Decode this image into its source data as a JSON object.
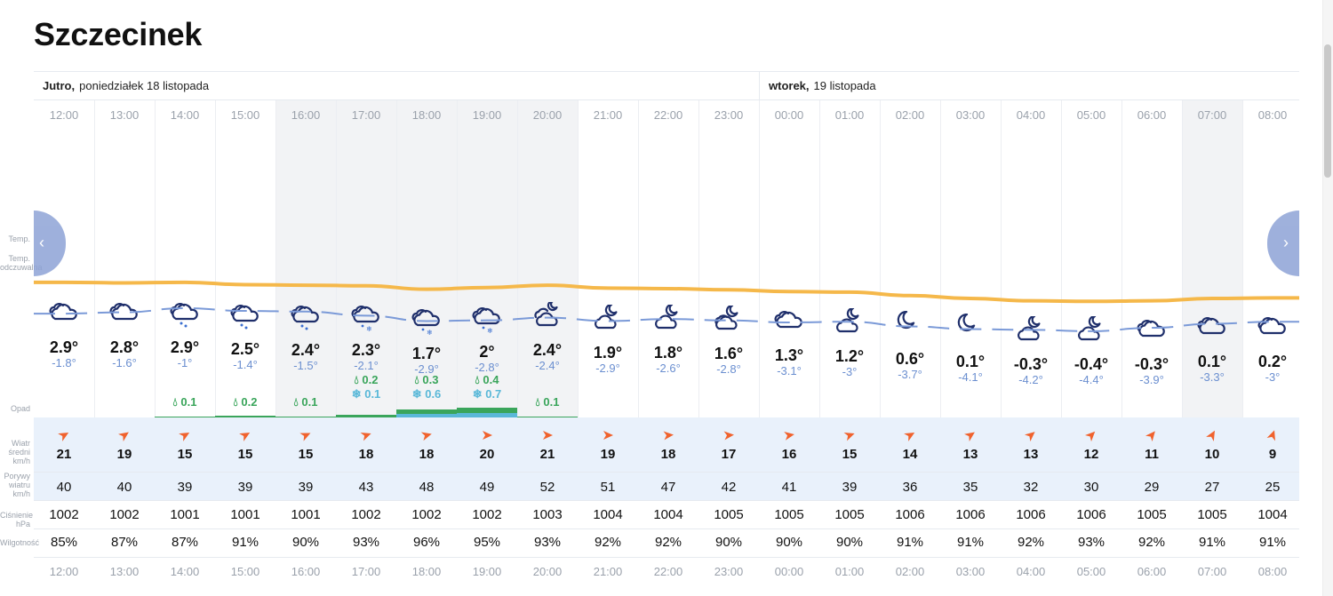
{
  "location": {
    "title": "Szczecinek"
  },
  "days": [
    {
      "name": "Jutro,",
      "date": "poniedziałek 18 listopada"
    },
    {
      "name": "wtorek,",
      "date": "19 listopada"
    }
  ],
  "labels": {
    "temp": "Temp.",
    "feels_line1": "Temp.",
    "feels_line2": "odczuwalna",
    "precip": "Opad",
    "wind_line1": "Wiatr średni",
    "wind_line2": "km/h",
    "gust_line1": "Porywy",
    "gust_line2": "wiatru",
    "gust_line3": "km/h",
    "pressure_line1": "Ciśnienie",
    "pressure_line2": "hPa",
    "humidity": "Wilgotność"
  },
  "navigation": {
    "prev_icon": "‹",
    "next_icon": "›"
  },
  "colors": {
    "temp_line": "#f5b84a",
    "feels_line": "#7b9ad8",
    "rain": "#3aa55b",
    "snow": "#5ab8d8",
    "wind_arrow": "#f0622d"
  },
  "hours": [
    {
      "time": "12:00",
      "temp": "2.9°",
      "feels": "-1.8°",
      "temp_val": 2.9,
      "feels_val": -1.8,
      "icon": "cloudy-icon",
      "rain": "",
      "snow": "",
      "wind": "21",
      "gust": "40",
      "pressure": "1002",
      "humidity": "85%",
      "wind_dir": 60
    },
    {
      "time": "13:00",
      "temp": "2.8°",
      "feels": "-1.6°",
      "temp_val": 2.8,
      "feels_val": -1.6,
      "icon": "cloudy-icon",
      "rain": "",
      "snow": "",
      "wind": "19",
      "gust": "40",
      "pressure": "1002",
      "humidity": "87%",
      "wind_dir": 55
    },
    {
      "time": "14:00",
      "temp": "2.9°",
      "feels": "-1°",
      "temp_val": 2.9,
      "feels_val": -1.0,
      "icon": "rain-icon",
      "rain": "0.1",
      "snow": "",
      "wind": "15",
      "gust": "39",
      "pressure": "1001",
      "humidity": "87%",
      "wind_dir": 60
    },
    {
      "time": "15:00",
      "temp": "2.5°",
      "feels": "-1.4°",
      "temp_val": 2.5,
      "feels_val": -1.4,
      "icon": "rain-icon",
      "rain": "0.2",
      "snow": "",
      "wind": "15",
      "gust": "39",
      "pressure": "1001",
      "humidity": "91%",
      "wind_dir": 60
    },
    {
      "time": "16:00",
      "temp": "2.4°",
      "feels": "-1.5°",
      "temp_val": 2.4,
      "feels_val": -1.5,
      "icon": "rain-icon",
      "rain": "0.1",
      "snow": "",
      "wind": "15",
      "gust": "39",
      "pressure": "1001",
      "humidity": "90%",
      "wind_dir": 65
    },
    {
      "time": "17:00",
      "temp": "2.3°",
      "feels": "-2.1°",
      "temp_val": 2.3,
      "feels_val": -2.1,
      "icon": "sleet-icon",
      "rain": "0.2",
      "snow": "0.1",
      "wind": "18",
      "gust": "43",
      "pressure": "1002",
      "humidity": "93%",
      "wind_dir": 70
    },
    {
      "time": "18:00",
      "temp": "1.7°",
      "feels": "-2.9°",
      "temp_val": 1.7,
      "feels_val": -2.9,
      "icon": "sleet-icon",
      "rain": "0.3",
      "snow": "0.6",
      "wind": "18",
      "gust": "48",
      "pressure": "1002",
      "humidity": "96%",
      "wind_dir": 75
    },
    {
      "time": "19:00",
      "temp": "2°",
      "feels": "-2.8°",
      "temp_val": 2.0,
      "feels_val": -2.8,
      "icon": "sleet-icon",
      "rain": "0.4",
      "snow": "0.7",
      "wind": "20",
      "gust": "49",
      "pressure": "1002",
      "humidity": "95%",
      "wind_dir": 90
    },
    {
      "time": "20:00",
      "temp": "2.4°",
      "feels": "-2.4°",
      "temp_val": 2.4,
      "feels_val": -2.4,
      "icon": "night-cloud-snow-icon",
      "rain": "0.1",
      "snow": "",
      "wind": "21",
      "gust": "52",
      "pressure": "1003",
      "humidity": "93%",
      "wind_dir": 90
    },
    {
      "time": "21:00",
      "temp": "1.9°",
      "feels": "-2.9°",
      "temp_val": 1.9,
      "feels_val": -2.9,
      "icon": "moon-cloud-icon",
      "rain": "",
      "snow": "",
      "wind": "19",
      "gust": "51",
      "pressure": "1004",
      "humidity": "92%",
      "wind_dir": 90
    },
    {
      "time": "22:00",
      "temp": "1.8°",
      "feels": "-2.6°",
      "temp_val": 1.8,
      "feels_val": -2.6,
      "icon": "moon-cloud-icon",
      "rain": "",
      "snow": "",
      "wind": "18",
      "gust": "47",
      "pressure": "1004",
      "humidity": "92%",
      "wind_dir": 85
    },
    {
      "time": "23:00",
      "temp": "1.6°",
      "feels": "-2.8°",
      "temp_val": 1.6,
      "feels_val": -2.8,
      "icon": "moon-cloudy-icon",
      "rain": "",
      "snow": "",
      "wind": "17",
      "gust": "42",
      "pressure": "1005",
      "humidity": "90%",
      "wind_dir": 85
    },
    {
      "time": "00:00",
      "temp": "1.3°",
      "feels": "-3.1°",
      "temp_val": 1.3,
      "feels_val": -3.1,
      "icon": "cloudy-icon",
      "rain": "",
      "snow": "",
      "wind": "16",
      "gust": "41",
      "pressure": "1005",
      "humidity": "90%",
      "wind_dir": 80
    },
    {
      "time": "01:00",
      "temp": "1.2°",
      "feels": "-3°",
      "temp_val": 1.2,
      "feels_val": -3.0,
      "icon": "moon-cloud-icon",
      "rain": "",
      "snow": "",
      "wind": "15",
      "gust": "39",
      "pressure": "1005",
      "humidity": "90%",
      "wind_dir": 70
    },
    {
      "time": "02:00",
      "temp": "0.6°",
      "feels": "-3.7°",
      "temp_val": 0.6,
      "feels_val": -3.7,
      "icon": "moon-icon",
      "rain": "",
      "snow": "",
      "wind": "14",
      "gust": "36",
      "pressure": "1006",
      "humidity": "91%",
      "wind_dir": 60
    },
    {
      "time": "03:00",
      "temp": "0.1°",
      "feels": "-4.1°",
      "temp_val": 0.1,
      "feels_val": -4.1,
      "icon": "moon-icon",
      "rain": "",
      "snow": "",
      "wind": "13",
      "gust": "35",
      "pressure": "1006",
      "humidity": "91%",
      "wind_dir": 55
    },
    {
      "time": "04:00",
      "temp": "-0.3°",
      "feels": "-4.2°",
      "temp_val": -0.3,
      "feels_val": -4.2,
      "icon": "moon-cloud-icon",
      "rain": "",
      "snow": "",
      "wind": "13",
      "gust": "32",
      "pressure": "1006",
      "humidity": "92%",
      "wind_dir": 50
    },
    {
      "time": "05:00",
      "temp": "-0.4°",
      "feels": "-4.4°",
      "temp_val": -0.4,
      "feels_val": -4.4,
      "icon": "moon-cloud-icon",
      "rain": "",
      "snow": "",
      "wind": "12",
      "gust": "30",
      "pressure": "1006",
      "humidity": "93%",
      "wind_dir": 45
    },
    {
      "time": "06:00",
      "temp": "-0.3°",
      "feels": "-3.9°",
      "temp_val": -0.3,
      "feels_val": -3.9,
      "icon": "cloudy-icon",
      "rain": "",
      "snow": "",
      "wind": "11",
      "gust": "29",
      "pressure": "1005",
      "humidity": "92%",
      "wind_dir": 40
    },
    {
      "time": "07:00",
      "temp": "0.1°",
      "feels": "-3.3°",
      "temp_val": 0.1,
      "feels_val": -3.3,
      "icon": "cloudy-icon",
      "rain": "",
      "snow": "",
      "wind": "10",
      "gust": "27",
      "pressure": "1005",
      "humidity": "91%",
      "wind_dir": 30
    },
    {
      "time": "08:00",
      "temp": "0.2°",
      "feels": "-3°",
      "temp_val": 0.2,
      "feels_val": -3.0,
      "icon": "cloudy-icon",
      "rain": "",
      "snow": "",
      "wind": "9",
      "gust": "25",
      "pressure": "1004",
      "humidity": "91%",
      "wind_dir": 20
    }
  ]
}
